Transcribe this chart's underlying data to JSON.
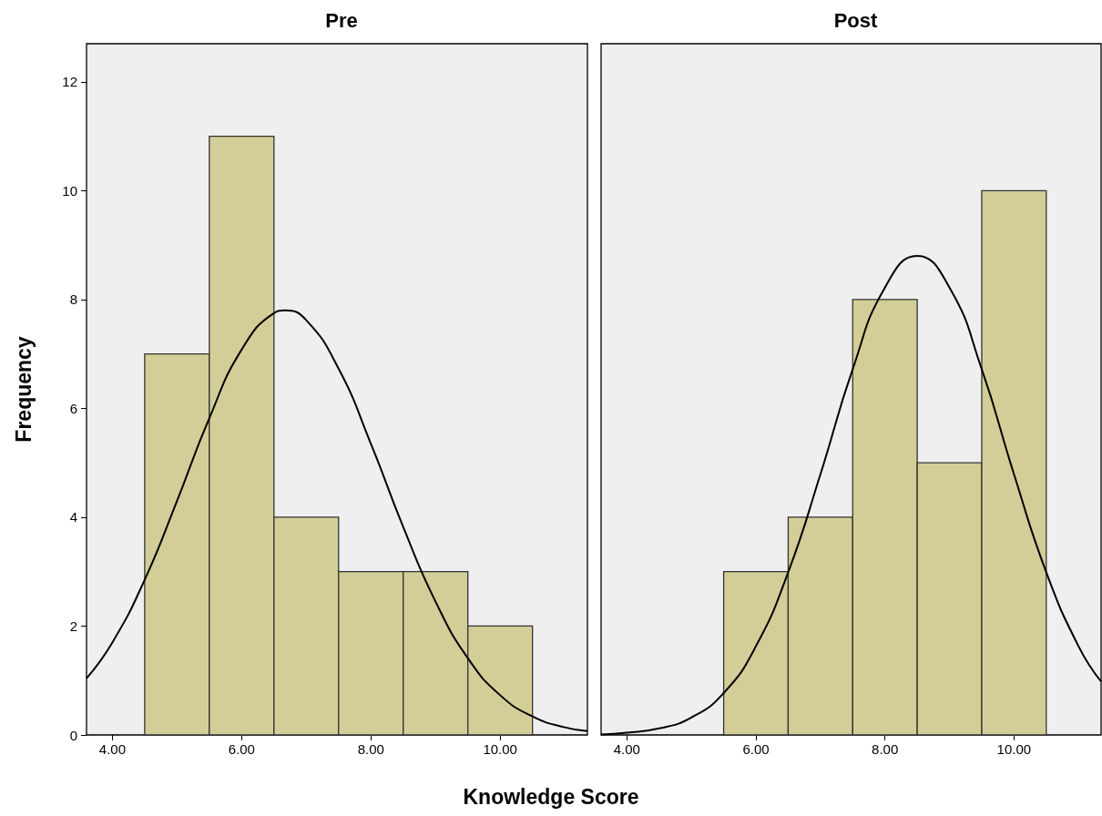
{
  "chart_data": [
    {
      "type": "histogram",
      "title": "Pre",
      "xlabel": "Knowledge Score",
      "ylabel": "Frequency",
      "bins": [
        4.5,
        5.5,
        6.5,
        7.5,
        8.5,
        9.5,
        10.5
      ],
      "series": [
        {
          "color": "#d3ce97",
          "values": [
            7,
            11,
            4,
            3,
            3,
            2
          ]
        },
        {
          "type": "line",
          "color": "#000000",
          "marker": "none",
          "x": [
            3.6,
            4.0,
            4.5,
            5.0,
            5.5,
            6.0,
            6.5,
            6.67,
            7.0,
            7.5,
            8.0,
            8.5,
            9.0,
            9.5,
            10.0,
            10.5,
            11.0,
            11.35
          ],
          "values": [
            1.04,
            1.7,
            2.85,
            4.3,
            5.82,
            7.08,
            7.75,
            7.8,
            7.62,
            6.73,
            5.35,
            3.82,
            2.45,
            1.41,
            0.73,
            0.34,
            0.14,
            0.07
          ]
        }
      ],
      "xlim": [
        3.6,
        11.35
      ],
      "ylim": [
        0,
        12.7
      ],
      "xticks": [
        {
          "value": 4,
          "label": "4.00"
        },
        {
          "value": 6,
          "label": "6.00"
        },
        {
          "value": 8,
          "label": "8.00"
        },
        {
          "value": 10,
          "label": "10.00"
        }
      ],
      "yticks": [
        0,
        2,
        4,
        6,
        8,
        10,
        12
      ]
    },
    {
      "type": "histogram",
      "title": "Post",
      "bins": [
        5.5,
        6.5,
        7.5,
        8.5,
        9.5,
        10.5
      ],
      "series": [
        {
          "color": "#d3ce97",
          "values": [
            3,
            4,
            8,
            5,
            10
          ]
        },
        {
          "type": "line",
          "color": "#000000",
          "marker": "none",
          "x": [
            3.6,
            4.0,
            4.5,
            5.0,
            5.5,
            6.0,
            6.5,
            7.0,
            7.5,
            8.0,
            8.5,
            9.0,
            9.5,
            10.0,
            10.5,
            11.0,
            11.35
          ],
          "values": [
            0.01,
            0.04,
            0.12,
            0.32,
            0.77,
            1.63,
            2.99,
            4.79,
            6.72,
            8.22,
            8.8,
            8.22,
            6.72,
            4.79,
            2.99,
            1.63,
            0.98
          ]
        }
      ],
      "xlim": [
        3.6,
        11.35
      ],
      "ylim": [
        0,
        12.7
      ],
      "xticks": [
        {
          "value": 4,
          "label": "4.00"
        },
        {
          "value": 6,
          "label": "6.00"
        },
        {
          "value": 8,
          "label": "8.00"
        },
        {
          "value": 10,
          "label": "10.00"
        }
      ],
      "yticks": [
        0,
        2,
        4,
        6,
        8,
        10,
        12
      ],
      "tick_labels": "x"
    }
  ]
}
